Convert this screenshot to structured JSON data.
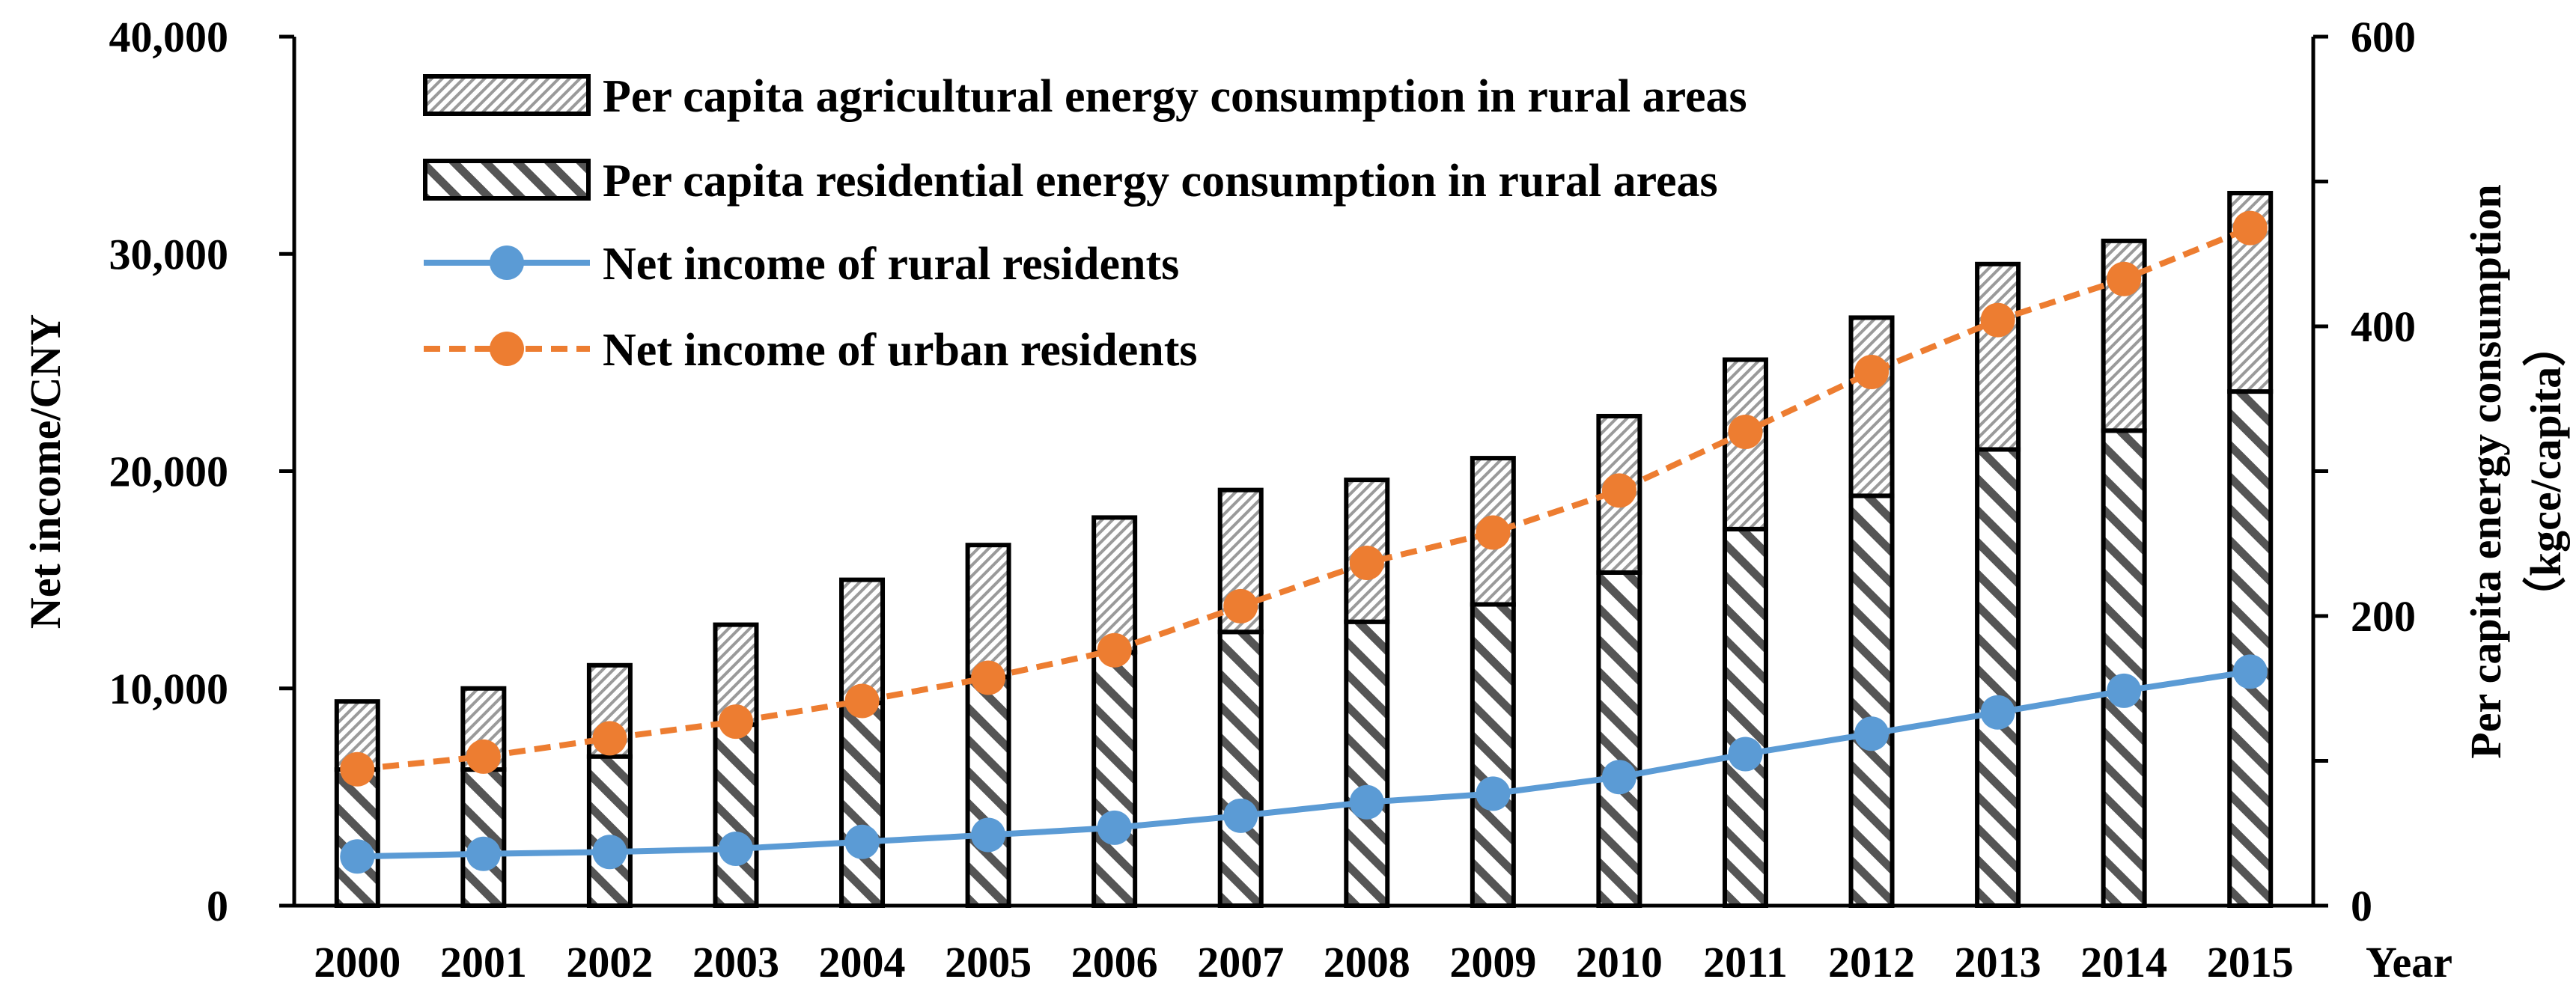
{
  "chart_data": {
    "type": "bar+line",
    "categories": [
      "2000",
      "2001",
      "2002",
      "2003",
      "2004",
      "2005",
      "2006",
      "2007",
      "2008",
      "2009",
      "2010",
      "2011",
      "2012",
      "2013",
      "2014",
      "2015"
    ],
    "xlabel": "Year",
    "ylabel_left": "Net income/CNY",
    "ylabel_right_line1": "Per capita energy consumption",
    "ylabel_right_line2": "（kgce/capita）",
    "ylim_left": [
      0,
      40000
    ],
    "yticks_left": [
      "0",
      "10,000",
      "20,000",
      "30,000",
      "40,000"
    ],
    "ylim_right": [
      0,
      600
    ],
    "yticks_right": [
      "0",
      "200",
      "400",
      "600"
    ],
    "legend_position": "top-left",
    "bar_series": [
      {
        "name": "Per capita residential energy consumption in rural areas",
        "axis": "right",
        "stack": "bottom",
        "values": [
          94,
          94,
          103,
          125,
          140,
          158,
          175,
          189,
          196,
          208,
          230,
          260,
          283,
          315,
          328,
          355
        ]
      },
      {
        "name": "Per capita agricultural energy consumption in rural areas",
        "axis": "right",
        "stack": "top",
        "values": [
          47,
          56,
          63,
          69,
          85,
          91,
          93,
          98,
          98,
          101,
          108,
          117,
          123,
          128,
          131,
          137
        ]
      }
    ],
    "line_series": [
      {
        "name": "Net income of rural residents",
        "axis": "left",
        "color": "#5b9bd5",
        "style": "solid",
        "values": [
          2266,
          2384,
          2472,
          2620,
          2936,
          3255,
          3587,
          4140,
          4761,
          5153,
          5919,
          6977,
          7917,
          8896,
          9892,
          10772
        ]
      },
      {
        "name": "Net income of urban residents",
        "axis": "left",
        "color": "#ed7d31",
        "style": "dashed",
        "values": [
          6280,
          6860,
          7703,
          8472,
          9422,
          10493,
          11759,
          13786,
          15781,
          17175,
          19109,
          21810,
          24565,
          26955,
          28844,
          31195
        ]
      }
    ]
  }
}
